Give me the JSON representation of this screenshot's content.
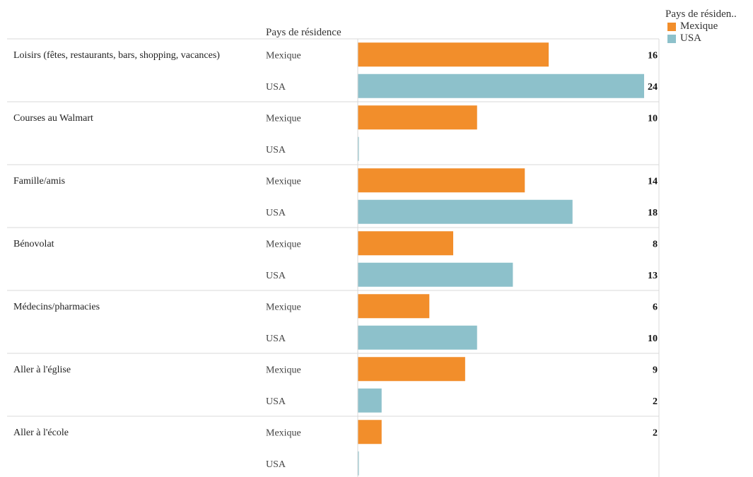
{
  "legend": {
    "title": "Pays de résiden..",
    "items": [
      {
        "label": "Mexique",
        "color": "#F28E2B"
      },
      {
        "label": "USA",
        "color": "#8DC1CB"
      }
    ]
  },
  "chart_data": {
    "type": "bar",
    "orientation": "horizontal",
    "column_header": "Pays de résidence",
    "series_names": [
      "Mexique",
      "USA"
    ],
    "colors": {
      "Mexique": "#F28E2B",
      "USA": "#8DC1CB"
    },
    "xlim": [
      0,
      24
    ],
    "grid": false,
    "legend_position": "top-right",
    "groups": [
      {
        "category": "Loisirs (fêtes, restaurants, bars, shopping, vacances)",
        "rows": [
          {
            "series": "Mexique",
            "value": 16,
            "label": "16"
          },
          {
            "series": "USA",
            "value": 24,
            "label": "24"
          }
        ]
      },
      {
        "category": "Courses au Walmart",
        "rows": [
          {
            "series": "Mexique",
            "value": 10,
            "label": "10"
          },
          {
            "series": "USA",
            "value": 0,
            "label": ""
          }
        ]
      },
      {
        "category": "Famille/amis",
        "rows": [
          {
            "series": "Mexique",
            "value": 14,
            "label": "14"
          },
          {
            "series": "USA",
            "value": 18,
            "label": "18"
          }
        ]
      },
      {
        "category": "Bénovolat",
        "rows": [
          {
            "series": "Mexique",
            "value": 8,
            "label": "8"
          },
          {
            "series": "USA",
            "value": 13,
            "label": "13"
          }
        ]
      },
      {
        "category": "Médecins/pharmacies",
        "rows": [
          {
            "series": "Mexique",
            "value": 6,
            "label": "6"
          },
          {
            "series": "USA",
            "value": 10,
            "label": "10"
          }
        ]
      },
      {
        "category": "Aller à l'église",
        "rows": [
          {
            "series": "Mexique",
            "value": 9,
            "label": "9"
          },
          {
            "series": "USA",
            "value": 2,
            "label": "2"
          }
        ]
      },
      {
        "category": "Aller à l'école",
        "rows": [
          {
            "series": "Mexique",
            "value": 2,
            "label": "2"
          },
          {
            "series": "USA",
            "value": 0,
            "label": ""
          }
        ]
      }
    ]
  }
}
